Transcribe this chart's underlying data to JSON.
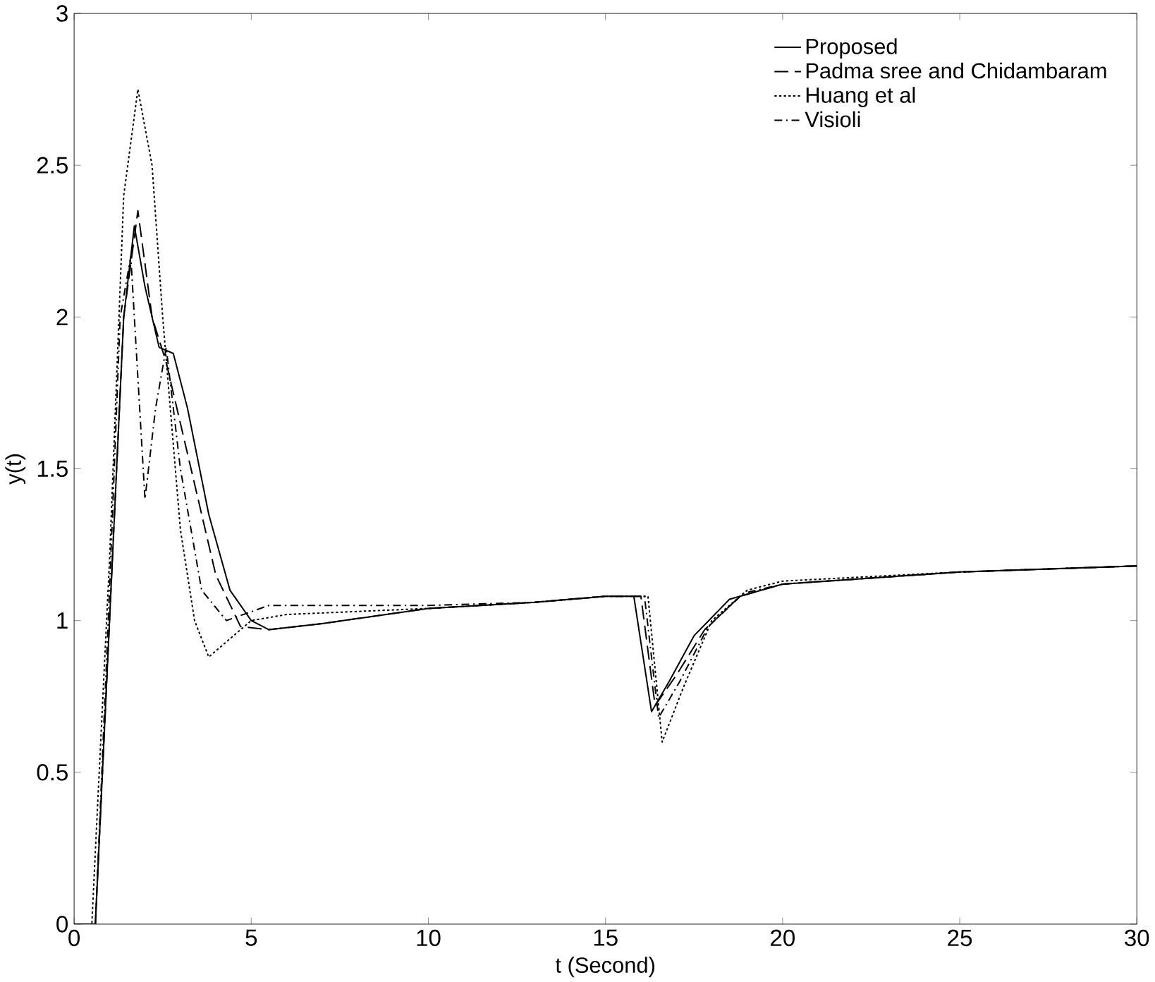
{
  "chart_data": {
    "type": "line",
    "xlabel": "t (Second)",
    "ylabel": "y(t)",
    "xlim": [
      0,
      30
    ],
    "ylim": [
      0,
      3
    ],
    "xticks": [
      0,
      5,
      10,
      15,
      20,
      25,
      30
    ],
    "yticks": [
      0,
      0.5,
      1,
      1.5,
      2,
      2.5,
      3
    ],
    "grid": false,
    "legend": "top right",
    "series": [
      {
        "name": "Proposed",
        "color": "#000000",
        "line_style": "solid",
        "x": [
          0,
          0.6,
          1.0,
          1.4,
          1.7,
          2.0,
          2.4,
          2.8,
          3.2,
          3.8,
          4.4,
          5.0,
          5.5,
          7,
          10,
          13,
          15,
          15.8,
          16.3,
          16.8,
          17.5,
          18.5,
          20,
          25,
          30
        ],
        "values": [
          0,
          0,
          1.0,
          2.0,
          2.3,
          2.1,
          1.9,
          1.88,
          1.7,
          1.35,
          1.1,
          1.0,
          0.97,
          0.99,
          1.04,
          1.06,
          1.08,
          1.08,
          0.7,
          0.8,
          0.95,
          1.07,
          1.12,
          1.16,
          1.18
        ]
      },
      {
        "name": "Padma sree and Chidambaram",
        "color": "#000000",
        "line_style": "dashed",
        "x": [
          0,
          0.6,
          1.0,
          1.4,
          1.8,
          2.2,
          2.6,
          3.3,
          4.0,
          4.7,
          5.5,
          7,
          10,
          13,
          15,
          16.0,
          16.4,
          17.0,
          17.8,
          18.8,
          20,
          25,
          30
        ],
        "values": [
          0,
          0,
          1.0,
          2.0,
          2.35,
          2.0,
          1.85,
          1.5,
          1.15,
          0.98,
          0.97,
          0.99,
          1.04,
          1.06,
          1.08,
          1.08,
          0.72,
          0.82,
          0.97,
          1.08,
          1.12,
          1.16,
          1.18
        ]
      },
      {
        "name": "Huang et al",
        "color": "#000000",
        "line_style": "dotted",
        "x": [
          0,
          0.5,
          1.0,
          1.4,
          1.8,
          2.2,
          2.5,
          3.0,
          3.4,
          3.8,
          4.3,
          5.0,
          6.0,
          8,
          10,
          13,
          15,
          16.2,
          16.6,
          17.2,
          18.0,
          19,
          20,
          25,
          30
        ],
        "values": [
          0,
          0,
          1.2,
          2.4,
          2.75,
          2.5,
          2.0,
          1.3,
          1.0,
          0.88,
          0.93,
          1.0,
          1.02,
          1.03,
          1.04,
          1.06,
          1.08,
          1.08,
          0.6,
          0.78,
          1.0,
          1.1,
          1.13,
          1.16,
          1.18
        ]
      },
      {
        "name": "Visioli",
        "color": "#000000",
        "line_style": "dashdot",
        "x": [
          0,
          0.6,
          1.0,
          1.3,
          1.6,
          2.0,
          2.3,
          2.6,
          3.0,
          3.6,
          4.3,
          5.5,
          7,
          10,
          13,
          15,
          16.1,
          16.5,
          17.1,
          17.9,
          18.9,
          20,
          25,
          30
        ],
        "values": [
          0,
          0,
          1.1,
          2.0,
          2.2,
          1.4,
          1.7,
          1.9,
          1.5,
          1.1,
          1.0,
          1.05,
          1.05,
          1.05,
          1.06,
          1.08,
          1.08,
          0.68,
          0.8,
          0.98,
          1.09,
          1.12,
          1.16,
          1.18
        ]
      }
    ]
  }
}
